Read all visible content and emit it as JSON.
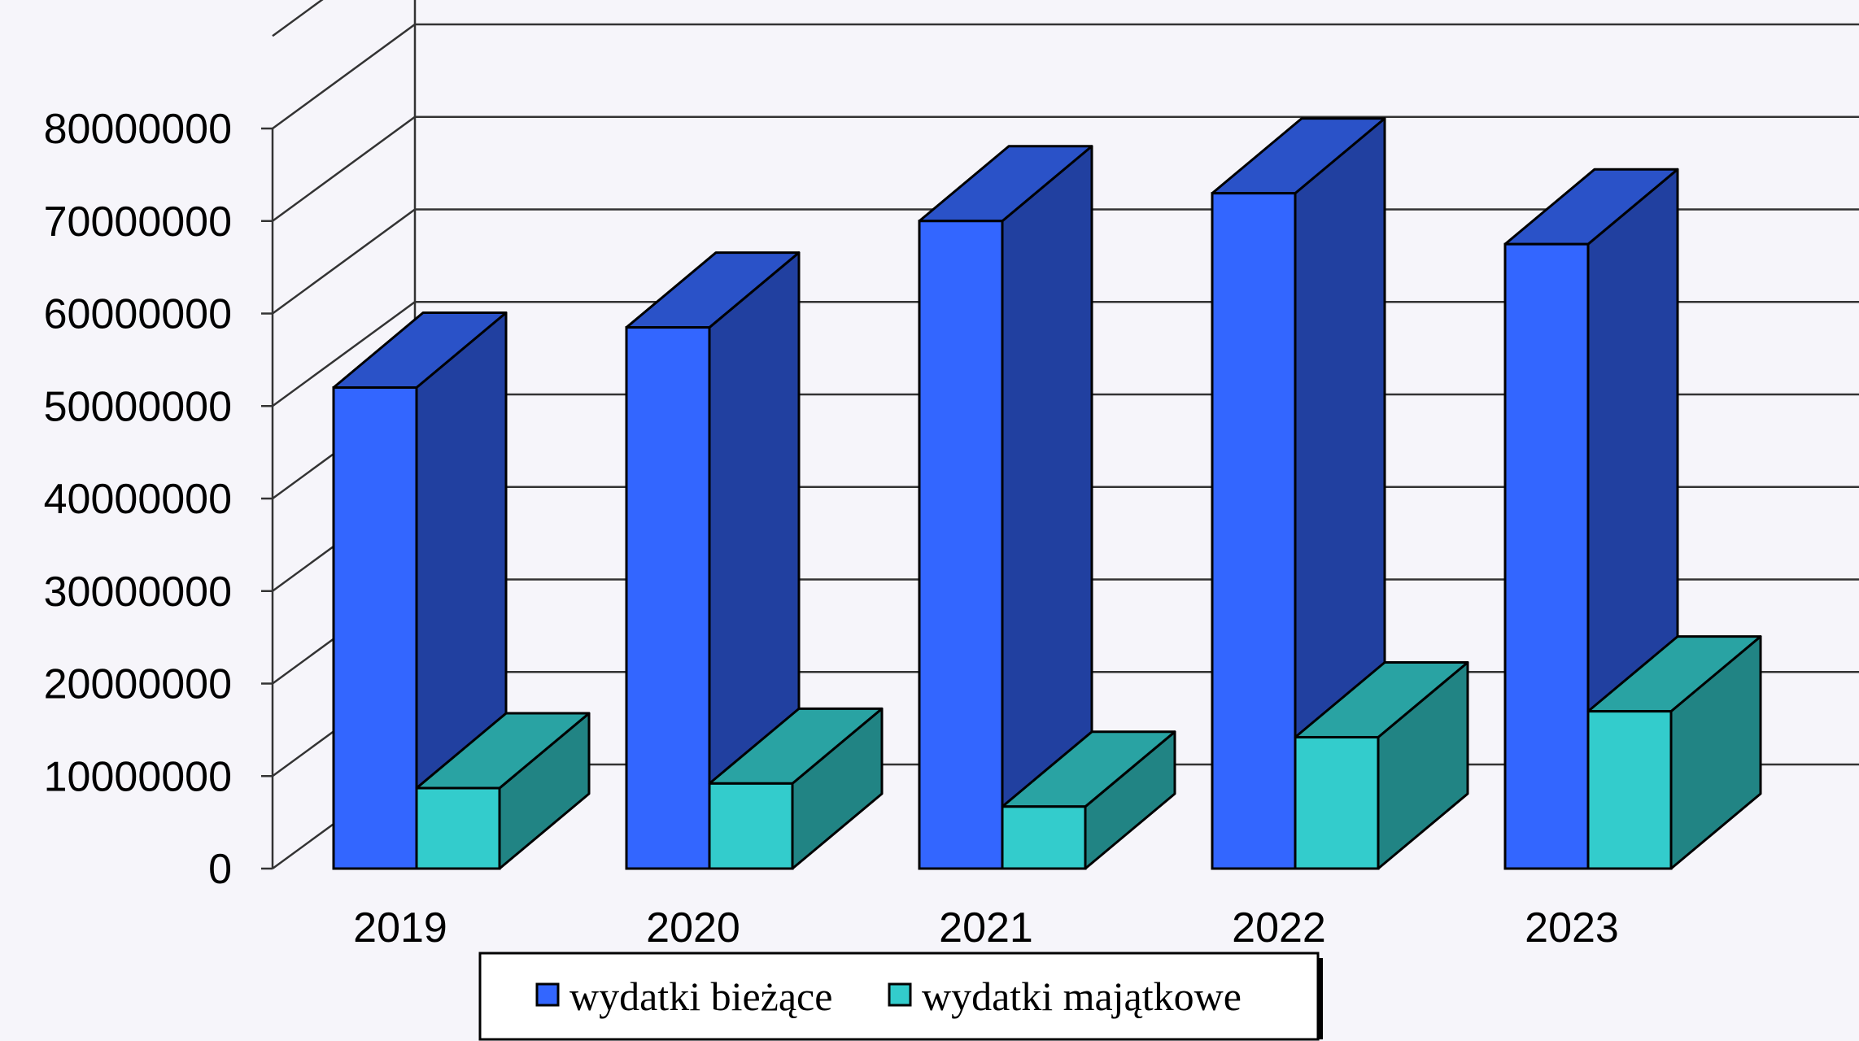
{
  "chart_data": {
    "type": "bar",
    "categories": [
      "2019",
      "2020",
      "2021",
      "2022",
      "2023"
    ],
    "series": [
      {
        "name": "wydatki bieżące",
        "values": [
          52000000,
          58500000,
          70000000,
          73000000,
          67500000
        ]
      },
      {
        "name": "wydatki majątkowe",
        "values": [
          8700000,
          9200000,
          6700000,
          14200000,
          17000000
        ]
      }
    ],
    "y_ticks": [
      "0",
      "10000000",
      "20000000",
      "30000000",
      "40000000",
      "50000000",
      "60000000",
      "70000000",
      "80000000"
    ],
    "ylim": [
      0,
      80000000
    ],
    "grid": true,
    "three_d": true,
    "legend_position": "bottom",
    "colors": {
      "background": "#f6f5fa",
      "series1_front": "#3366ff",
      "series1_side": "#2140a0",
      "series1_top": "#2a52c8",
      "series2_front": "#33cccc",
      "series2_side": "#218484",
      "series2_top": "#29a3a3",
      "grid": "#333333"
    }
  }
}
